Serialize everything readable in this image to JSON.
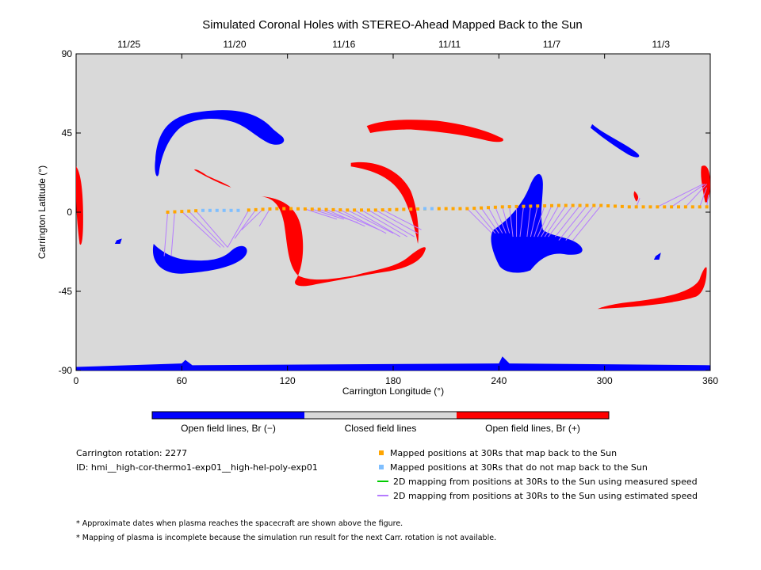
{
  "chart_data": {
    "type": "scatter",
    "title": "Simulated Coronal Holes with STEREO-Ahead Mapped Back to the Sun",
    "xlabel": "Carrington Longitude (°)",
    "ylabel": "Carrington Latitude (°)",
    "xlim": [
      0,
      360
    ],
    "ylim": [
      -90,
      90
    ],
    "xticks": [
      "0",
      "60",
      "120",
      "180",
      "240",
      "300",
      "360"
    ],
    "yticks": [
      "90",
      "45",
      "0",
      "-45",
      "-90"
    ],
    "top_axis_dates": [
      "11/25",
      "11/20",
      "11/16",
      "11/11",
      "11/7",
      "11/3"
    ],
    "top_axis_date_longitudes": [
      30,
      90,
      152,
      212,
      270,
      332
    ],
    "grid": false,
    "colorbar": [
      "Open field lines, Br (−)",
      "Closed field lines",
      "Open field lines, Br (+)"
    ],
    "colors": {
      "negative_open": "#0000ff",
      "closed": "#d9d9d9",
      "positive_open": "#ff0000",
      "mapped": "#ffa500",
      "not_mapped": "#7fbfff",
      "measured_speed": "#00cc00",
      "estimated_speed": "#b57bff"
    },
    "mapped_points": [
      [
        52,
        0
      ],
      [
        56,
        0.2
      ],
      [
        60,
        0.4
      ],
      [
        64,
        0.6
      ],
      [
        68,
        0.8
      ],
      [
        98,
        1.2
      ],
      [
        102,
        1.4
      ],
      [
        106,
        1.6
      ],
      [
        110,
        1.8
      ],
      [
        114,
        2
      ],
      [
        118,
        2
      ],
      [
        122,
        2
      ],
      [
        126,
        1.9
      ],
      [
        130,
        1.8
      ],
      [
        134,
        1.7
      ],
      [
        138,
        1.6
      ],
      [
        142,
        1.5
      ],
      [
        146,
        1.4
      ],
      [
        150,
        1.3
      ],
      [
        154,
        1.2
      ],
      [
        158,
        1.2
      ],
      [
        162,
        1.2
      ],
      [
        166,
        1.2
      ],
      [
        170,
        1.2
      ],
      [
        174,
        1.3
      ],
      [
        178,
        1.4
      ],
      [
        182,
        1.5
      ],
      [
        186,
        1.6
      ],
      [
        190,
        1.7
      ],
      [
        194,
        1.8
      ],
      [
        198,
        1.9
      ],
      [
        206,
        2
      ],
      [
        210,
        2
      ],
      [
        214,
        2
      ],
      [
        218,
        2
      ],
      [
        222,
        2
      ],
      [
        226,
        2.2
      ],
      [
        230,
        2.4
      ],
      [
        234,
        2.6
      ],
      [
        238,
        2.8
      ],
      [
        242,
        3
      ],
      [
        246,
        3.1
      ],
      [
        250,
        3.2
      ],
      [
        254,
        3.3
      ],
      [
        258,
        3.4
      ],
      [
        262,
        3.5
      ],
      [
        266,
        3.6
      ],
      [
        270,
        3.7
      ],
      [
        274,
        3.8
      ],
      [
        278,
        3.8
      ],
      [
        282,
        3.8
      ],
      [
        286,
        3.8
      ],
      [
        290,
        3.8
      ],
      [
        294,
        3.8
      ],
      [
        298,
        3.8
      ],
      [
        302,
        3.6
      ],
      [
        306,
        3.4
      ],
      [
        310,
        3.2
      ],
      [
        314,
        3
      ],
      [
        318,
        3
      ],
      [
        322,
        3
      ],
      [
        326,
        3
      ],
      [
        330,
        3
      ],
      [
        334,
        3
      ],
      [
        338,
        3
      ],
      [
        342,
        3
      ],
      [
        346,
        3
      ],
      [
        350,
        3
      ],
      [
        354,
        3
      ],
      [
        358,
        3
      ]
    ],
    "not_mapped_points": [
      [
        72,
        1
      ],
      [
        76,
        1
      ],
      [
        80,
        1
      ],
      [
        84,
        1
      ],
      [
        88,
        1
      ],
      [
        92,
        1
      ],
      [
        202,
        2
      ],
      [
        198,
        2
      ]
    ],
    "estimated_speed_links": [
      [
        52,
        0,
        50,
        -25
      ],
      [
        56,
        0.2,
        54,
        -25
      ],
      [
        60,
        0.4,
        82,
        -20
      ],
      [
        64,
        0.6,
        84,
        -20
      ],
      [
        68,
        0.8,
        86,
        -20
      ],
      [
        98,
        1.2,
        86,
        -20
      ],
      [
        102,
        1.4,
        90,
        -15
      ],
      [
        106,
        1.6,
        94,
        -10
      ],
      [
        110,
        1.8,
        104,
        -8
      ],
      [
        130,
        1.8,
        148,
        -4
      ],
      [
        134,
        1.7,
        152,
        -4
      ],
      [
        138,
        1.6,
        160,
        -6
      ],
      [
        142,
        1.5,
        164,
        -8
      ],
      [
        146,
        1.4,
        172,
        -10
      ],
      [
        150,
        1.3,
        176,
        -12
      ],
      [
        154,
        1.2,
        180,
        -12
      ],
      [
        158,
        1.2,
        184,
        -14
      ],
      [
        162,
        1.2,
        188,
        -14
      ],
      [
        166,
        1.2,
        192,
        -14
      ],
      [
        170,
        1.2,
        194,
        -12
      ],
      [
        174,
        1.3,
        196,
        -10
      ],
      [
        222,
        2,
        236,
        -12
      ],
      [
        226,
        2.2,
        238,
        -12
      ],
      [
        230,
        2.4,
        240,
        -12
      ],
      [
        234,
        2.6,
        242,
        -12
      ],
      [
        238,
        2.8,
        244,
        -12
      ],
      [
        242,
        3,
        246,
        -12
      ],
      [
        246,
        3.1,
        248,
        -14
      ],
      [
        250,
        3.2,
        250,
        -14
      ],
      [
        254,
        3.3,
        252,
        -14
      ],
      [
        258,
        3.4,
        256,
        -14
      ],
      [
        262,
        3.5,
        258,
        -14
      ],
      [
        266,
        3.6,
        260,
        -14
      ],
      [
        270,
        3.7,
        262,
        -14
      ],
      [
        274,
        3.8,
        264,
        -14
      ],
      [
        278,
        3.8,
        266,
        -14
      ],
      [
        282,
        3.8,
        268,
        -14
      ],
      [
        286,
        3.8,
        272,
        -14
      ],
      [
        290,
        3.8,
        274,
        -16
      ],
      [
        294,
        3.8,
        278,
        -16
      ],
      [
        298,
        3.8,
        282,
        -16
      ],
      [
        318,
        3,
        320,
        8
      ],
      [
        330,
        3,
        356,
        16
      ],
      [
        338,
        3,
        357,
        16
      ],
      [
        346,
        3,
        358,
        16
      ],
      [
        354,
        3,
        358,
        14
      ],
      [
        358,
        3,
        359,
        10
      ]
    ]
  },
  "legend": {
    "carrington_rotation_label": "Carrington rotation: 2277",
    "id_label": "ID: hmi__high-cor-thermo1-exp01__high-hel-poly-exp01",
    "mapped_label": "Mapped positions at 30Rs that map back to the Sun",
    "not_mapped_label": "Mapped positions at 30Rs that do not map back to the Sun",
    "measured_label": "2D mapping from positions at 30Rs to the Sun using measured speed",
    "estimated_label": "2D mapping from positions at 30Rs to the Sun using estimated speed"
  },
  "notes": {
    "note1": "* Approximate dates when plasma reaches the spacecraft are shown above the figure.",
    "note2": "* Mapping of plasma is incomplete because the simulation run result for the next Carr. rotation is not available."
  }
}
